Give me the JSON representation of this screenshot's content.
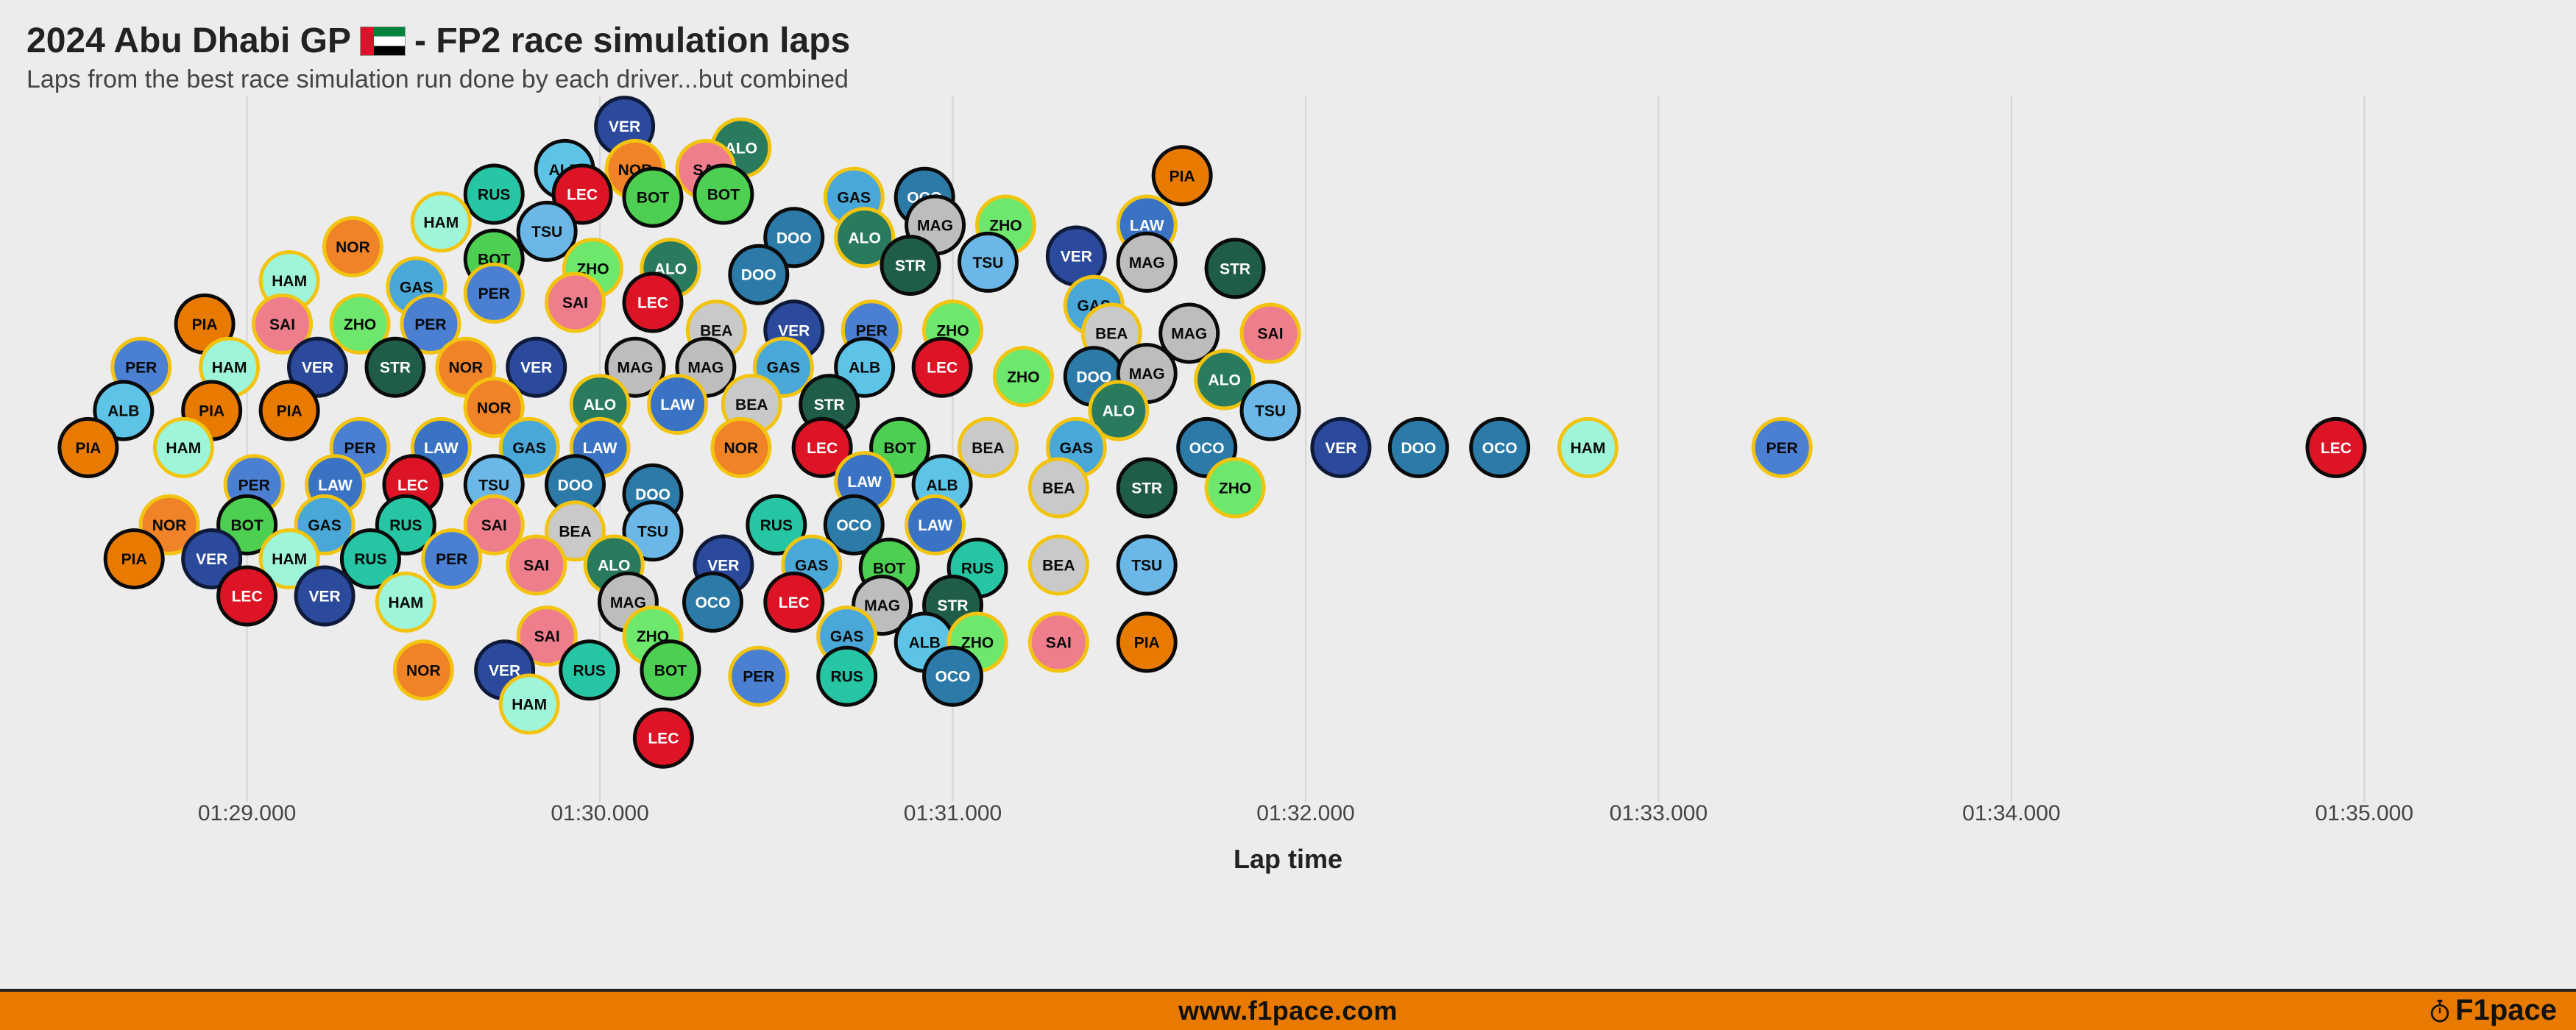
{
  "header": {
    "title_pre": "2024 Abu Dhabi GP",
    "title_post": "- FP2 race simulation laps",
    "subtitle": "Laps from the best race simulation run done by each driver...but combined"
  },
  "footer": {
    "url": "www.f1pace.com",
    "brand": "F1pace"
  },
  "chart": {
    "type": "beeswarm",
    "background": "#ececec",
    "grid_color": "#d4d4d4",
    "axis_title": "Lap time",
    "axis_title_fontsize": 36,
    "tick_fontsize": 30,
    "x_domain_sec": [
      88.3,
      95.6
    ],
    "ticks": [
      {
        "sec": 89.0,
        "label": "01:29.000"
      },
      {
        "sec": 90.0,
        "label": "01:30.000"
      },
      {
        "sec": 91.0,
        "label": "01:31.000"
      },
      {
        "sec": 92.0,
        "label": "01:32.000"
      },
      {
        "sec": 93.0,
        "label": "01:33.000"
      },
      {
        "sec": 94.0,
        "label": "01:34.000"
      },
      {
        "sec": 95.0,
        "label": "01:35.000"
      }
    ],
    "dot_radius": 39,
    "dot_stroke_width": 5,
    "label_fontsize": 21,
    "drivers": {
      "VER": {
        "fill": "#2b4a9b",
        "stroke": "#0f1a3a",
        "text": "#ffffff"
      },
      "PER": {
        "fill": "#4a7fd1",
        "stroke": "#f2c40f",
        "text": "#0a0a0a"
      },
      "LEC": {
        "fill": "#dd1425",
        "stroke": "#0a0a0a",
        "text": "#ffffff"
      },
      "SAI": {
        "fill": "#ef7e8d",
        "stroke": "#f2c40f",
        "text": "#0a0a0a"
      },
      "HAM": {
        "fill": "#9ef5da",
        "stroke": "#f2c40f",
        "text": "#0a0a0a"
      },
      "RUS": {
        "fill": "#26c6a4",
        "stroke": "#0a0a0a",
        "text": "#0a0a0a"
      },
      "NOR": {
        "fill": "#f08327",
        "stroke": "#f2c40f",
        "text": "#0a0a0a"
      },
      "PIA": {
        "fill": "#e87a00",
        "stroke": "#0a0a0a",
        "text": "#0a0a0a"
      },
      "ALO": {
        "fill": "#2a7a5e",
        "stroke": "#f2c40f",
        "text": "#ffffff"
      },
      "STR": {
        "fill": "#1f5d48",
        "stroke": "#0a0a0a",
        "text": "#ffffff"
      },
      "GAS": {
        "fill": "#4aa8d8",
        "stroke": "#f2c40f",
        "text": "#0a0a0a"
      },
      "OCO": {
        "fill": "#2c7aa8",
        "stroke": "#0a0a0a",
        "text": "#ffffff"
      },
      "DOO": {
        "fill": "#2c7aa8",
        "stroke": "#0a0a0a",
        "text": "#ffffff"
      },
      "TSU": {
        "fill": "#6bb8e8",
        "stroke": "#0a0a0a",
        "text": "#0a0a0a"
      },
      "LAW": {
        "fill": "#3a73c4",
        "stroke": "#f2c40f",
        "text": "#ffffff"
      },
      "ALB": {
        "fill": "#5dc4e8",
        "stroke": "#0a0a0a",
        "text": "#0a0a0a"
      },
      "BOT": {
        "fill": "#4dd052",
        "stroke": "#0a0a0a",
        "text": "#0a0a0a"
      },
      "ZHO": {
        "fill": "#6de86d",
        "stroke": "#f2c40f",
        "text": "#0a0a0a"
      },
      "MAG": {
        "fill": "#bdbdbd",
        "stroke": "#0a0a0a",
        "text": "#0a0a0a"
      },
      "BEA": {
        "fill": "#c9c9c9",
        "stroke": "#f2c40f",
        "text": "#0a0a0a"
      }
    },
    "points": [
      {
        "d": "VER",
        "t": 90.07,
        "y": -10.2
      },
      {
        "d": "ALO",
        "t": 90.4,
        "y": -9.5
      },
      {
        "d": "ALB",
        "t": 89.9,
        "y": -8.8
      },
      {
        "d": "NOR",
        "t": 90.1,
        "y": -8.8
      },
      {
        "d": "SAI",
        "t": 90.3,
        "y": -8.8
      },
      {
        "d": "PIA",
        "t": 91.65,
        "y": -8.6
      },
      {
        "d": "RUS",
        "t": 89.7,
        "y": -8.0
      },
      {
        "d": "LEC",
        "t": 89.95,
        "y": -8.0
      },
      {
        "d": "BOT",
        "t": 90.15,
        "y": -7.9
      },
      {
        "d": "BOT",
        "t": 90.35,
        "y": -8.0
      },
      {
        "d": "GAS",
        "t": 90.72,
        "y": -7.9
      },
      {
        "d": "OCO",
        "t": 90.92,
        "y": -7.9
      },
      {
        "d": "HAM",
        "t": 89.55,
        "y": -7.1
      },
      {
        "d": "TSU",
        "t": 89.85,
        "y": -6.8
      },
      {
        "d": "DOO",
        "t": 90.55,
        "y": -6.6
      },
      {
        "d": "ALO",
        "t": 90.75,
        "y": -6.6
      },
      {
        "d": "MAG",
        "t": 90.95,
        "y": -7.0
      },
      {
        "d": "ZHO",
        "t": 91.15,
        "y": -7.0
      },
      {
        "d": "LAW",
        "t": 91.55,
        "y": -7.0
      },
      {
        "d": "NOR",
        "t": 89.3,
        "y": -6.3
      },
      {
        "d": "BOT",
        "t": 89.7,
        "y": -5.9
      },
      {
        "d": "ZHO",
        "t": 89.98,
        "y": -5.6
      },
      {
        "d": "ALO",
        "t": 90.2,
        "y": -5.6
      },
      {
        "d": "DOO",
        "t": 90.45,
        "y": -5.4
      },
      {
        "d": "STR",
        "t": 90.88,
        "y": -5.7
      },
      {
        "d": "TSU",
        "t": 91.1,
        "y": -5.8
      },
      {
        "d": "VER",
        "t": 91.35,
        "y": -6.0
      },
      {
        "d": "MAG",
        "t": 91.55,
        "y": -5.8
      },
      {
        "d": "STR",
        "t": 91.8,
        "y": -5.6
      },
      {
        "d": "HAM",
        "t": 89.12,
        "y": -5.2
      },
      {
        "d": "GAS",
        "t": 89.48,
        "y": -5.0
      },
      {
        "d": "PER",
        "t": 89.7,
        "y": -4.8
      },
      {
        "d": "SAI",
        "t": 89.93,
        "y": -4.5
      },
      {
        "d": "LEC",
        "t": 90.15,
        "y": -4.5
      },
      {
        "d": "GAS",
        "t": 91.4,
        "y": -4.4
      },
      {
        "d": "PIA",
        "t": 88.88,
        "y": -3.8
      },
      {
        "d": "SAI",
        "t": 89.1,
        "y": -3.8
      },
      {
        "d": "ZHO",
        "t": 89.32,
        "y": -3.8
      },
      {
        "d": "PER",
        "t": 89.52,
        "y": -3.8
      },
      {
        "d": "BEA",
        "t": 90.33,
        "y": -3.6
      },
      {
        "d": "VER",
        "t": 90.55,
        "y": -3.6
      },
      {
        "d": "PER",
        "t": 90.77,
        "y": -3.6
      },
      {
        "d": "ZHO",
        "t": 91.0,
        "y": -3.6
      },
      {
        "d": "BEA",
        "t": 91.45,
        "y": -3.5
      },
      {
        "d": "MAG",
        "t": 91.67,
        "y": -3.5
      },
      {
        "d": "SAI",
        "t": 91.9,
        "y": -3.5
      },
      {
        "d": "PER",
        "t": 88.7,
        "y": -2.4
      },
      {
        "d": "HAM",
        "t": 88.95,
        "y": -2.4
      },
      {
        "d": "VER",
        "t": 89.2,
        "y": -2.4
      },
      {
        "d": "STR",
        "t": 89.42,
        "y": -2.4
      },
      {
        "d": "NOR",
        "t": 89.62,
        "y": -2.4
      },
      {
        "d": "VER",
        "t": 89.82,
        "y": -2.4
      },
      {
        "d": "MAG",
        "t": 90.1,
        "y": -2.4
      },
      {
        "d": "MAG",
        "t": 90.3,
        "y": -2.4
      },
      {
        "d": "GAS",
        "t": 90.52,
        "y": -2.4
      },
      {
        "d": "ALB",
        "t": 90.75,
        "y": -2.4
      },
      {
        "d": "LEC",
        "t": 90.97,
        "y": -2.4
      },
      {
        "d": "ZHO",
        "t": 91.2,
        "y": -2.1
      },
      {
        "d": "DOO",
        "t": 91.4,
        "y": -2.1
      },
      {
        "d": "MAG",
        "t": 91.55,
        "y": -2.2
      },
      {
        "d": "ALO",
        "t": 91.77,
        "y": -2.0
      },
      {
        "d": "ALB",
        "t": 88.65,
        "y": -1.0
      },
      {
        "d": "PIA",
        "t": 88.9,
        "y": -1.0
      },
      {
        "d": "PIA",
        "t": 89.12,
        "y": -1.0
      },
      {
        "d": "NOR",
        "t": 89.7,
        "y": -1.1
      },
      {
        "d": "ALO",
        "t": 90.0,
        "y": -1.2
      },
      {
        "d": "LAW",
        "t": 90.22,
        "y": -1.2
      },
      {
        "d": "BEA",
        "t": 90.43,
        "y": -1.2
      },
      {
        "d": "STR",
        "t": 90.65,
        "y": -1.2
      },
      {
        "d": "ALO",
        "t": 91.47,
        "y": -1.0
      },
      {
        "d": "TSU",
        "t": 91.9,
        "y": -1.0
      },
      {
        "d": "PIA",
        "t": 88.55,
        "y": 0.2
      },
      {
        "d": "HAM",
        "t": 88.82,
        "y": 0.2
      },
      {
        "d": "PER",
        "t": 89.32,
        "y": 0.2
      },
      {
        "d": "LAW",
        "t": 89.55,
        "y": 0.2
      },
      {
        "d": "GAS",
        "t": 89.8,
        "y": 0.2
      },
      {
        "d": "LAW",
        "t": 90.0,
        "y": 0.2
      },
      {
        "d": "NOR",
        "t": 90.4,
        "y": 0.2
      },
      {
        "d": "LEC",
        "t": 90.63,
        "y": 0.2
      },
      {
        "d": "BOT",
        "t": 90.85,
        "y": 0.2
      },
      {
        "d": "BEA",
        "t": 91.1,
        "y": 0.2
      },
      {
        "d": "GAS",
        "t": 91.35,
        "y": 0.2
      },
      {
        "d": "OCO",
        "t": 91.72,
        "y": 0.2
      },
      {
        "d": "VER",
        "t": 92.1,
        "y": 0.2
      },
      {
        "d": "DOO",
        "t": 92.32,
        "y": 0.2
      },
      {
        "d": "OCO",
        "t": 92.55,
        "y": 0.2
      },
      {
        "d": "HAM",
        "t": 92.8,
        "y": 0.2
      },
      {
        "d": "PER",
        "t": 93.35,
        "y": 0.2
      },
      {
        "d": "LEC",
        "t": 94.92,
        "y": 0.2
      },
      {
        "d": "PER",
        "t": 89.02,
        "y": 1.4
      },
      {
        "d": "LAW",
        "t": 89.25,
        "y": 1.4
      },
      {
        "d": "LEC",
        "t": 89.47,
        "y": 1.4
      },
      {
        "d": "TSU",
        "t": 89.7,
        "y": 1.4
      },
      {
        "d": "DOO",
        "t": 89.93,
        "y": 1.4
      },
      {
        "d": "DOO",
        "t": 90.15,
        "y": 1.7
      },
      {
        "d": "LAW",
        "t": 90.75,
        "y": 1.3
      },
      {
        "d": "ALB",
        "t": 90.97,
        "y": 1.4
      },
      {
        "d": "BEA",
        "t": 91.3,
        "y": 1.5
      },
      {
        "d": "STR",
        "t": 91.55,
        "y": 1.5
      },
      {
        "d": "ZHO",
        "t": 91.8,
        "y": 1.5
      },
      {
        "d": "NOR",
        "t": 88.78,
        "y": 2.7
      },
      {
        "d": "BOT",
        "t": 89.0,
        "y": 2.7
      },
      {
        "d": "GAS",
        "t": 89.22,
        "y": 2.7
      },
      {
        "d": "RUS",
        "t": 89.45,
        "y": 2.7
      },
      {
        "d": "SAI",
        "t": 89.7,
        "y": 2.7
      },
      {
        "d": "BEA",
        "t": 89.93,
        "y": 2.9
      },
      {
        "d": "TSU",
        "t": 90.15,
        "y": 2.9
      },
      {
        "d": "RUS",
        "t": 90.5,
        "y": 2.7
      },
      {
        "d": "OCO",
        "t": 90.72,
        "y": 2.7
      },
      {
        "d": "LAW",
        "t": 90.95,
        "y": 2.7
      },
      {
        "d": "PIA",
        "t": 88.68,
        "y": 3.8
      },
      {
        "d": "VER",
        "t": 88.9,
        "y": 3.8
      },
      {
        "d": "HAM",
        "t": 89.12,
        "y": 3.8
      },
      {
        "d": "RUS",
        "t": 89.35,
        "y": 3.8
      },
      {
        "d": "PER",
        "t": 89.58,
        "y": 3.8
      },
      {
        "d": "SAI",
        "t": 89.82,
        "y": 4.0
      },
      {
        "d": "ALO",
        "t": 90.04,
        "y": 4.0
      },
      {
        "d": "VER",
        "t": 90.35,
        "y": 4.0
      },
      {
        "d": "GAS",
        "t": 90.6,
        "y": 4.0
      },
      {
        "d": "BOT",
        "t": 90.82,
        "y": 4.1
      },
      {
        "d": "RUS",
        "t": 91.07,
        "y": 4.1
      },
      {
        "d": "BEA",
        "t": 91.3,
        "y": 4.0
      },
      {
        "d": "TSU",
        "t": 91.55,
        "y": 4.0
      },
      {
        "d": "LEC",
        "t": 89.0,
        "y": 5.0
      },
      {
        "d": "VER",
        "t": 89.22,
        "y": 5.0
      },
      {
        "d": "HAM",
        "t": 89.45,
        "y": 5.2
      },
      {
        "d": "MAG",
        "t": 90.08,
        "y": 5.2
      },
      {
        "d": "OCO",
        "t": 90.32,
        "y": 5.2
      },
      {
        "d": "LEC",
        "t": 90.55,
        "y": 5.2
      },
      {
        "d": "MAG",
        "t": 90.8,
        "y": 5.3
      },
      {
        "d": "STR",
        "t": 91.0,
        "y": 5.3
      },
      {
        "d": "SAI",
        "t": 89.85,
        "y": 6.3
      },
      {
        "d": "ZHO",
        "t": 90.15,
        "y": 6.3
      },
      {
        "d": "GAS",
        "t": 90.7,
        "y": 6.3
      },
      {
        "d": "ALB",
        "t": 90.92,
        "y": 6.5
      },
      {
        "d": "ZHO",
        "t": 91.07,
        "y": 6.5
      },
      {
        "d": "SAI",
        "t": 91.3,
        "y": 6.5
      },
      {
        "d": "PIA",
        "t": 91.55,
        "y": 6.5
      },
      {
        "d": "NOR",
        "t": 89.5,
        "y": 7.4
      },
      {
        "d": "VER",
        "t": 89.73,
        "y": 7.4
      },
      {
        "d": "RUS",
        "t": 89.97,
        "y": 7.4
      },
      {
        "d": "BOT",
        "t": 90.2,
        "y": 7.4
      },
      {
        "d": "PER",
        "t": 90.45,
        "y": 7.6
      },
      {
        "d": "RUS",
        "t": 90.7,
        "y": 7.6
      },
      {
        "d": "OCO",
        "t": 91.0,
        "y": 7.6
      },
      {
        "d": "HAM",
        "t": 89.8,
        "y": 8.5
      },
      {
        "d": "LEC",
        "t": 90.18,
        "y": 9.6
      }
    ]
  }
}
